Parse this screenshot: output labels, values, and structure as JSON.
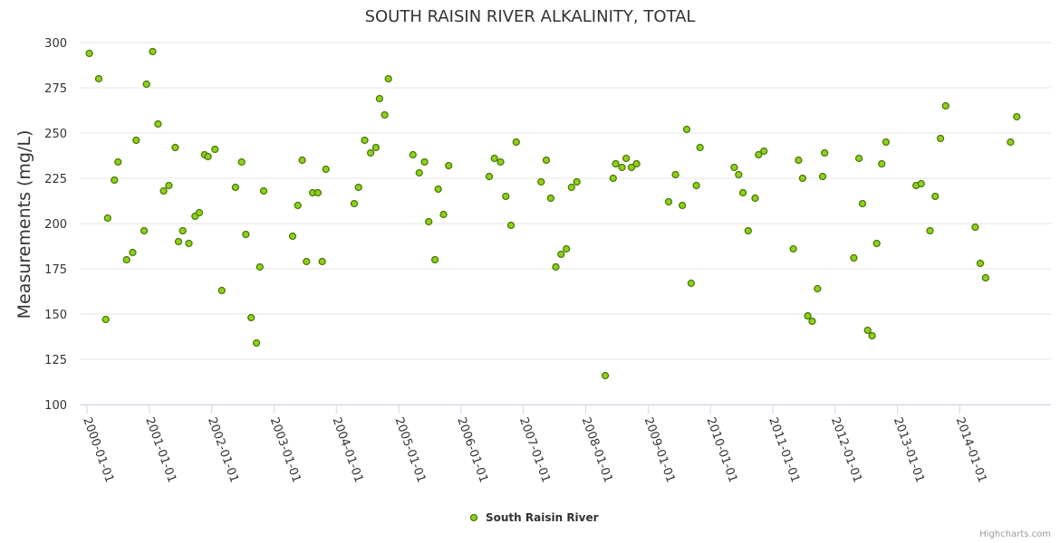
{
  "chart_data": {
    "type": "scatter",
    "title": "SOUTH RAISIN RIVER ALKALINITY, TOTAL",
    "ylabel": "Measurements (mg/L)",
    "xlabel": "",
    "ylim": [
      100,
      300
    ],
    "yticks": [
      100,
      125,
      150,
      175,
      200,
      225,
      250,
      275,
      300
    ],
    "xlim": [
      "2000-01-01",
      "2014-12-31"
    ],
    "xticks": [
      "2000-01-01",
      "2001-01-01",
      "2002-01-01",
      "2003-01-01",
      "2004-01-01",
      "2005-01-01",
      "2006-01-01",
      "2007-01-01",
      "2008-01-01",
      "2009-01-01",
      "2010-01-01",
      "2011-01-01",
      "2012-01-01",
      "2013-01-01",
      "2014-01-01"
    ],
    "grid": true,
    "legend": "bottom-center",
    "series": [
      {
        "name": "South Raisin River",
        "color": "#8fd11a",
        "edge_color": "#4a7a08",
        "points": [
          [
            "2000-01-15",
            294
          ],
          [
            "2000-03-10",
            280
          ],
          [
            "2000-04-20",
            147
          ],
          [
            "2000-05-01",
            203
          ],
          [
            "2000-06-10",
            224
          ],
          [
            "2000-07-01",
            234
          ],
          [
            "2000-08-20",
            180
          ],
          [
            "2000-09-25",
            184
          ],
          [
            "2000-10-15",
            246
          ],
          [
            "2000-12-01",
            196
          ],
          [
            "2000-12-15",
            277
          ],
          [
            "2001-01-20",
            295
          ],
          [
            "2001-02-20",
            255
          ],
          [
            "2001-03-25",
            218
          ],
          [
            "2001-04-25",
            221
          ],
          [
            "2001-06-01",
            242
          ],
          [
            "2001-06-20",
            190
          ],
          [
            "2001-07-15",
            196
          ],
          [
            "2001-08-20",
            189
          ],
          [
            "2001-09-25",
            204
          ],
          [
            "2001-10-20",
            206
          ],
          [
            "2001-11-20",
            238
          ],
          [
            "2001-12-10",
            237
          ],
          [
            "2002-01-20",
            241
          ],
          [
            "2002-03-01",
            163
          ],
          [
            "2002-05-20",
            220
          ],
          [
            "2002-06-25",
            234
          ],
          [
            "2002-07-20",
            194
          ],
          [
            "2002-08-20",
            148
          ],
          [
            "2002-09-20",
            134
          ],
          [
            "2002-10-10",
            176
          ],
          [
            "2002-11-01",
            218
          ],
          [
            "2003-04-20",
            193
          ],
          [
            "2003-05-20",
            210
          ],
          [
            "2003-06-15",
            235
          ],
          [
            "2003-07-10",
            179
          ],
          [
            "2003-08-15",
            217
          ],
          [
            "2003-09-15",
            217
          ],
          [
            "2003-10-10",
            179
          ],
          [
            "2003-11-01",
            230
          ],
          [
            "2004-04-15",
            211
          ],
          [
            "2004-05-10",
            220
          ],
          [
            "2004-06-15",
            246
          ],
          [
            "2004-07-20",
            239
          ],
          [
            "2004-08-20",
            242
          ],
          [
            "2004-09-10",
            269
          ],
          [
            "2004-10-10",
            260
          ],
          [
            "2004-11-01",
            280
          ],
          [
            "2005-03-25",
            238
          ],
          [
            "2005-05-01",
            228
          ],
          [
            "2005-06-01",
            234
          ],
          [
            "2005-06-25",
            201
          ],
          [
            "2005-08-01",
            180
          ],
          [
            "2005-08-20",
            219
          ],
          [
            "2005-09-20",
            205
          ],
          [
            "2005-10-20",
            232
          ],
          [
            "2006-06-15",
            226
          ],
          [
            "2006-07-15",
            236
          ],
          [
            "2006-08-20",
            234
          ],
          [
            "2006-09-20",
            215
          ],
          [
            "2006-10-20",
            199
          ],
          [
            "2006-11-20",
            245
          ],
          [
            "2007-04-15",
            223
          ],
          [
            "2007-05-15",
            235
          ],
          [
            "2007-06-10",
            214
          ],
          [
            "2007-07-10",
            176
          ],
          [
            "2007-08-10",
            183
          ],
          [
            "2007-09-10",
            186
          ],
          [
            "2007-10-10",
            220
          ],
          [
            "2007-11-10",
            223
          ],
          [
            "2008-04-25",
            116
          ],
          [
            "2008-06-10",
            225
          ],
          [
            "2008-06-25",
            233
          ],
          [
            "2008-08-01",
            231
          ],
          [
            "2008-08-25",
            236
          ],
          [
            "2008-09-25",
            231
          ],
          [
            "2008-10-25",
            233
          ],
          [
            "2009-05-01",
            212
          ],
          [
            "2009-06-10",
            227
          ],
          [
            "2009-07-20",
            210
          ],
          [
            "2009-08-15",
            252
          ],
          [
            "2009-09-10",
            167
          ],
          [
            "2009-10-10",
            221
          ],
          [
            "2009-11-01",
            242
          ],
          [
            "2010-05-20",
            231
          ],
          [
            "2010-06-15",
            227
          ],
          [
            "2010-07-10",
            217
          ],
          [
            "2010-08-10",
            196
          ],
          [
            "2010-09-20",
            214
          ],
          [
            "2010-10-10",
            238
          ],
          [
            "2010-11-10",
            240
          ],
          [
            "2011-05-01",
            186
          ],
          [
            "2011-06-01",
            235
          ],
          [
            "2011-06-25",
            225
          ],
          [
            "2011-07-25",
            149
          ],
          [
            "2011-08-20",
            146
          ],
          [
            "2011-09-20",
            164
          ],
          [
            "2011-10-20",
            226
          ],
          [
            "2011-11-01",
            239
          ],
          [
            "2012-04-20",
            181
          ],
          [
            "2012-05-20",
            236
          ],
          [
            "2012-06-10",
            211
          ],
          [
            "2012-07-10",
            141
          ],
          [
            "2012-08-05",
            138
          ],
          [
            "2012-09-01",
            189
          ],
          [
            "2012-10-01",
            233
          ],
          [
            "2012-10-25",
            245
          ],
          [
            "2013-04-20",
            221
          ],
          [
            "2013-05-20",
            222
          ],
          [
            "2013-07-10",
            196
          ],
          [
            "2013-08-10",
            215
          ],
          [
            "2013-09-10",
            247
          ],
          [
            "2013-10-10",
            265
          ],
          [
            "2014-04-01",
            198
          ],
          [
            "2014-05-01",
            178
          ],
          [
            "2014-06-01",
            170
          ],
          [
            "2014-10-25",
            245
          ],
          [
            "2014-12-01",
            259
          ]
        ]
      }
    ]
  },
  "credit": "Highcharts.com"
}
